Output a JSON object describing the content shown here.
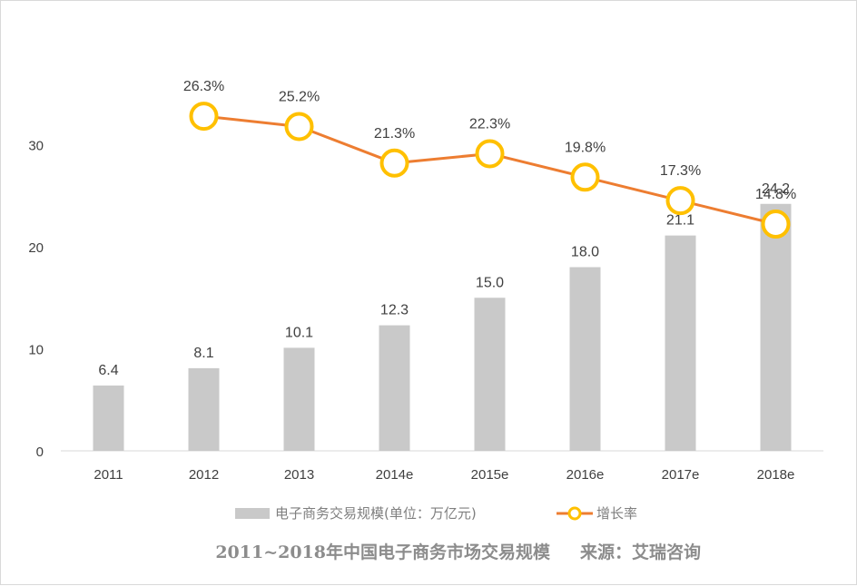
{
  "chart_data": {
    "type": "bar",
    "categories": [
      "2011",
      "2012",
      "2013",
      "2014e",
      "2015e",
      "2016e",
      "2017e",
      "2018e"
    ],
    "series": [
      {
        "name": "电子商务交易规模(单位：万亿元)",
        "type": "bar",
        "color": "#c9c9c9",
        "values": [
          6.4,
          8.1,
          10.1,
          12.3,
          15.0,
          18.0,
          21.1,
          24.2
        ],
        "labels": [
          "6.4",
          "8.1",
          "10.1",
          "12.3",
          "15.0",
          "18.0",
          "21.1",
          "24.2"
        ]
      },
      {
        "name": "增长率",
        "type": "line",
        "color": "#ed7d31",
        "marker_color": "#ffc000",
        "values": [
          null,
          26.3,
          25.2,
          21.3,
          22.3,
          19.8,
          17.3,
          14.8
        ],
        "labels": [
          "",
          "26.3%",
          "25.2%",
          "21.3%",
          "22.3%",
          "19.8%",
          "17.3%",
          "14.8%"
        ]
      }
    ],
    "y_ticks": [
      "0",
      "10",
      "20",
      "30"
    ],
    "ylim": [
      0,
      40
    ],
    "y2lim": [
      6,
      28
    ],
    "caption": "2011~2018年中国电子商务市场交易规模",
    "source": "来源：艾瑞咨询"
  }
}
